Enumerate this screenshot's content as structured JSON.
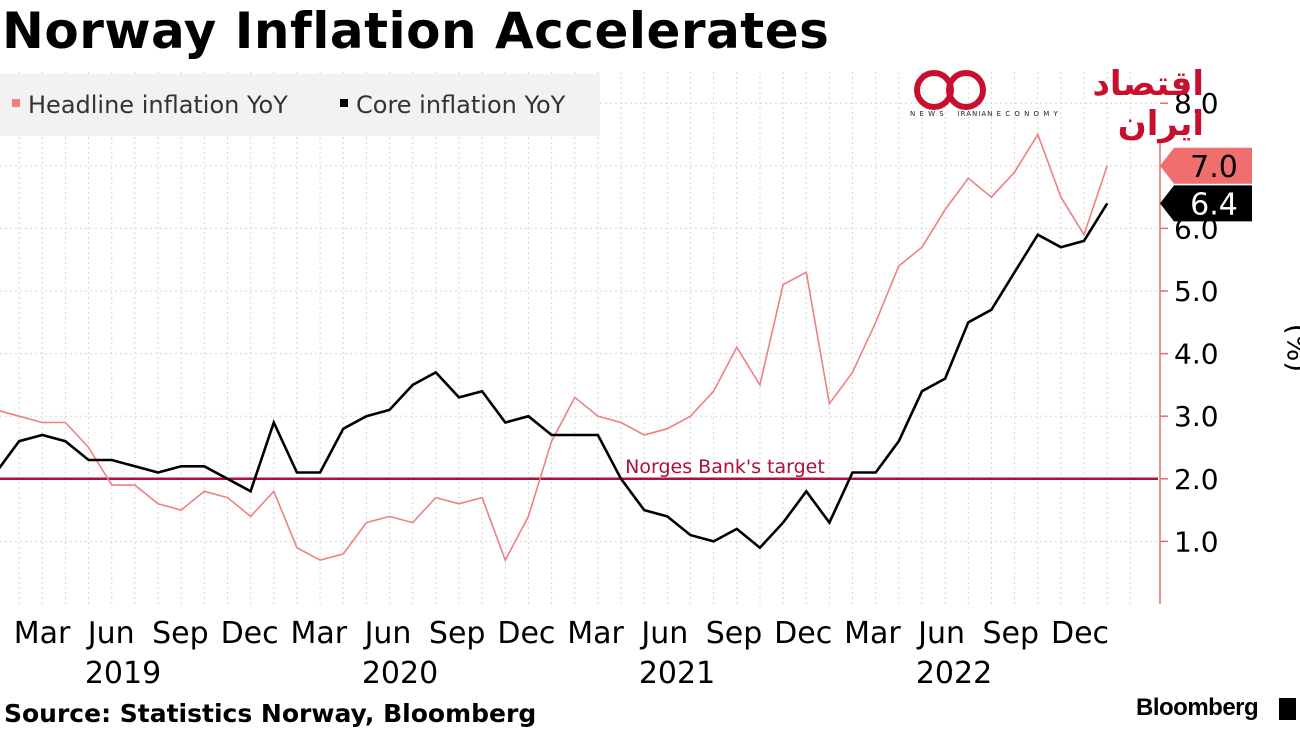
{
  "title": "Norway Inflation Accelerates",
  "source": "Source: Statistics Norway, Bloomberg",
  "brand": "Bloomberg",
  "watermark": {
    "line1": "اقتصاد ایران",
    "line2": "N E W S    IRANIAN E C O N O M Y"
  },
  "colors": {
    "headline": "#f08080",
    "core": "#000000",
    "target": "#b0103a",
    "headline_tag": "#f06e6e",
    "core_tag": "#000000"
  },
  "chart_data": {
    "type": "line",
    "x_start": "2019-01",
    "x_end": "2022-12",
    "x_tick_labels": [
      "Mar",
      "Jun",
      "Sep",
      "Dec",
      "Mar",
      "Jun",
      "Sep",
      "Dec",
      "Mar",
      "Jun",
      "Sep",
      "Dec",
      "Mar",
      "Jun",
      "Sep",
      "Dec"
    ],
    "year_labels": [
      "2019",
      "2020",
      "2021",
      "2022"
    ],
    "y_ticks": [
      "1.0",
      "2.0",
      "3.0",
      "4.0",
      "5.0",
      "6.0",
      "7.0",
      "8.0"
    ],
    "ylim": [
      0,
      8.2
    ],
    "ylabel": "(%)",
    "grid": true,
    "legend_position": "top-left",
    "series": [
      {
        "name": "Headline inflation YoY",
        "end_label": "7.0",
        "values": [
          3.1,
          3.0,
          2.9,
          2.9,
          2.5,
          1.9,
          1.9,
          1.6,
          1.5,
          1.8,
          1.7,
          1.4,
          1.8,
          0.9,
          0.7,
          0.8,
          1.3,
          1.4,
          1.3,
          1.7,
          1.6,
          1.7,
          0.7,
          1.4,
          2.6,
          3.3,
          3.0,
          2.9,
          2.7,
          2.8,
          3.0,
          3.4,
          4.1,
          3.5,
          5.1,
          5.3,
          3.2,
          3.7,
          4.5,
          5.4,
          5.7,
          6.3,
          6.8,
          6.5,
          6.9,
          7.5,
          6.5,
          5.9,
          7.0
        ]
      },
      {
        "name": "Core inflation YoY",
        "end_label": "6.4",
        "values": [
          2.1,
          2.6,
          2.7,
          2.6,
          2.3,
          2.3,
          2.2,
          2.1,
          2.2,
          2.2,
          2.0,
          1.8,
          2.9,
          2.1,
          2.1,
          2.8,
          3.0,
          3.1,
          3.5,
          3.7,
          3.3,
          3.4,
          2.9,
          3.0,
          2.7,
          2.7,
          2.7,
          2.0,
          1.5,
          1.4,
          1.1,
          1.0,
          1.2,
          0.9,
          1.3,
          1.8,
          1.3,
          2.1,
          2.1,
          2.6,
          3.4,
          3.6,
          4.5,
          4.7,
          5.3,
          5.9,
          5.7,
          5.8,
          6.4
        ]
      }
    ],
    "reference_line": {
      "value": 2.0,
      "label": "Norges Bank's target"
    }
  }
}
